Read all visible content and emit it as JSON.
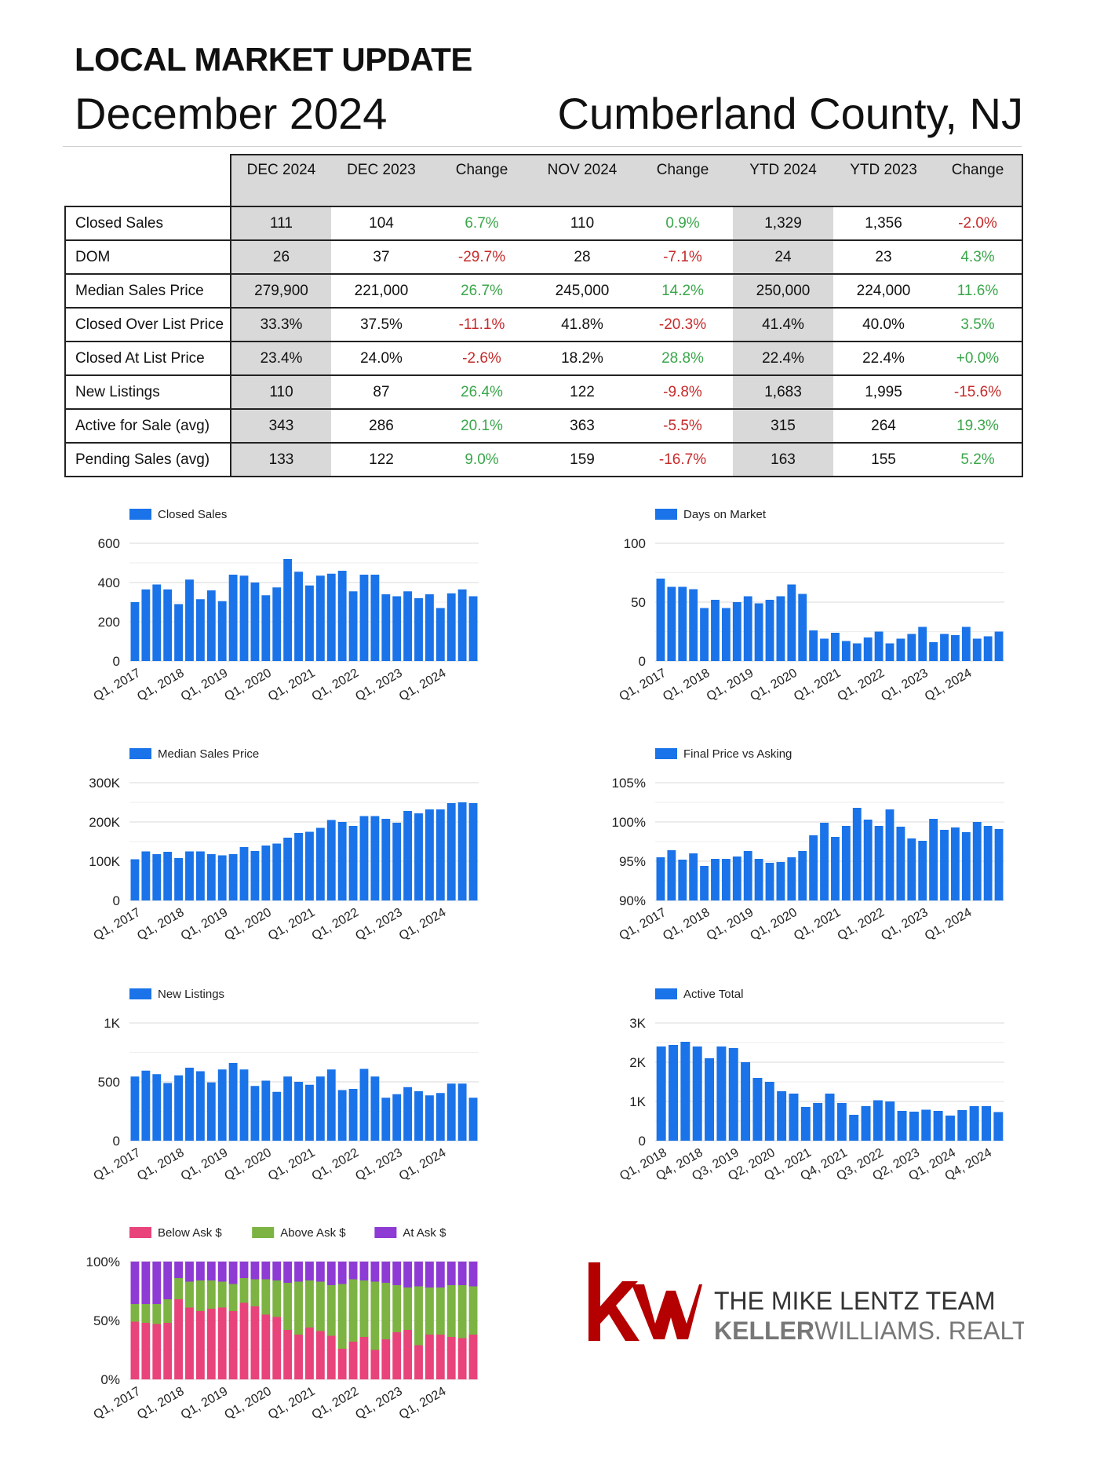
{
  "header": {
    "title": "LOCAL MARKET UPDATE",
    "date": "December 2024",
    "county": "Cumberland County, NJ"
  },
  "table": {
    "columns": [
      "DEC 2024",
      "DEC 2023",
      "Change",
      "NOV 2024",
      "Change",
      "YTD 2024",
      "YTD 2023",
      "Change"
    ],
    "rows": [
      {
        "label": "Closed Sales",
        "cells": [
          "111",
          "104",
          "6.7%",
          "110",
          "0.9%",
          "1,329",
          "1,356",
          "-2.0%"
        ]
      },
      {
        "label": "DOM",
        "cells": [
          "26",
          "37",
          "-29.7%",
          "28",
          "-7.1%",
          "24",
          "23",
          "4.3%"
        ]
      },
      {
        "label": "Median Sales Price",
        "cells": [
          "279,900",
          "221,000",
          "26.7%",
          "245,000",
          "14.2%",
          "250,000",
          "224,000",
          "11.6%"
        ]
      },
      {
        "label": "Closed Over List Price",
        "cells": [
          "33.3%",
          "37.5%",
          "-11.1%",
          "41.8%",
          "-20.3%",
          "41.4%",
          "40.0%",
          "3.5%"
        ]
      },
      {
        "label": "Closed At List Price",
        "cells": [
          "23.4%",
          "24.0%",
          "-2.6%",
          "18.2%",
          "28.8%",
          "22.4%",
          "22.4%",
          "+0.0%"
        ]
      },
      {
        "label": "New Listings",
        "cells": [
          "110",
          "87",
          "26.4%",
          "122",
          "-9.8%",
          "1,683",
          "1,995",
          "-15.6%"
        ]
      },
      {
        "label": "Active for Sale (avg)",
        "cells": [
          "343",
          "286",
          "20.1%",
          "363",
          "-5.5%",
          "315",
          "264",
          "19.3%"
        ]
      },
      {
        "label": "Pending Sales (avg)",
        "cells": [
          "133",
          "122",
          "9.0%",
          "159",
          "-16.7%",
          "163",
          "155",
          "5.2%"
        ]
      }
    ],
    "change_colors": {
      "positive": "#3aa64a",
      "negative": "#c62a2a"
    }
  },
  "colors": {
    "bar": "#1a73e8",
    "below_ask": "#e8437a",
    "above_ask": "#7cb342",
    "at_ask": "#8e3ad4",
    "grid": "#d9d9d9"
  },
  "chart_data": [
    {
      "id": "closed-sales",
      "type": "bar",
      "legend": [
        "Closed Sales"
      ],
      "x_tick_labels": [
        "Q1, 2017",
        "Q1, 2018",
        "Q1, 2019",
        "Q1, 2020",
        "Q1, 2021",
        "Q1, 2022",
        "Q1, 2023",
        "Q1, 2024"
      ],
      "y_ticks": [
        "0",
        "200",
        "400",
        "600"
      ],
      "ylim": [
        0,
        600
      ],
      "values": [
        300,
        365,
        390,
        365,
        290,
        415,
        315,
        360,
        305,
        440,
        435,
        400,
        335,
        375,
        520,
        455,
        385,
        435,
        445,
        460,
        355,
        440,
        440,
        340,
        330,
        355,
        320,
        340,
        270,
        345,
        365,
        330
      ]
    },
    {
      "id": "days-on-market",
      "type": "bar",
      "legend": [
        "Days on Market"
      ],
      "x_tick_labels": [
        "Q1, 2017",
        "Q1, 2018",
        "Q1, 2019",
        "Q1, 2020",
        "Q1, 2021",
        "Q1, 2022",
        "Q1, 2023",
        "Q1, 2024"
      ],
      "y_ticks": [
        "0",
        "50",
        "100"
      ],
      "ylim": [
        0,
        100
      ],
      "values": [
        70,
        63,
        63,
        61,
        45,
        52,
        45,
        50,
        55,
        49,
        52,
        55,
        65,
        57,
        26,
        19,
        24,
        17,
        15,
        20,
        25,
        15,
        19,
        23,
        29,
        16,
        23,
        22,
        29,
        19,
        21,
        25
      ]
    },
    {
      "id": "median-sales-price",
      "type": "bar",
      "legend": [
        "Median Sales Price"
      ],
      "x_tick_labels": [
        "Q1, 2017",
        "Q1, 2018",
        "Q1, 2019",
        "Q1, 2020",
        "Q1, 2021",
        "Q1, 2022",
        "Q1, 2023",
        "Q1, 2024"
      ],
      "y_ticks": [
        "0",
        "100K",
        "200K",
        "300K"
      ],
      "ylim": [
        0,
        300000
      ],
      "values": [
        105000,
        125000,
        118000,
        124000,
        108000,
        125000,
        125000,
        118000,
        115000,
        118000,
        136000,
        126000,
        140000,
        145000,
        160000,
        172000,
        175000,
        185000,
        205000,
        200000,
        190000,
        215000,
        215000,
        208000,
        198000,
        228000,
        222000,
        232000,
        232000,
        248000,
        250000,
        248000
      ]
    },
    {
      "id": "final-price-vs-asking",
      "type": "bar",
      "legend": [
        "Final Price vs Asking"
      ],
      "x_tick_labels": [
        "Q1, 2017",
        "Q1, 2018",
        "Q1, 2019",
        "Q1, 2020",
        "Q1, 2021",
        "Q1, 2022",
        "Q1, 2023",
        "Q1, 2024"
      ],
      "y_ticks": [
        "90%",
        "95%",
        "100%",
        "105%"
      ],
      "ylim": [
        90,
        105
      ],
      "values": [
        95.5,
        96.4,
        95.2,
        96.0,
        94.4,
        95.3,
        95.3,
        95.6,
        96.3,
        95.3,
        94.8,
        94.9,
        95.5,
        96.3,
        98.3,
        99.9,
        98.1,
        99.5,
        101.8,
        100.3,
        99.5,
        101.6,
        99.4,
        97.9,
        97.6,
        100.4,
        99.0,
        99.3,
        98.7,
        100.0,
        99.5,
        99.1
      ]
    },
    {
      "id": "new-listings",
      "type": "bar",
      "legend": [
        "New Listings"
      ],
      "x_tick_labels": [
        "Q1, 2017",
        "Q1, 2018",
        "Q1, 2019",
        "Q1, 2020",
        "Q1, 2021",
        "Q1, 2022",
        "Q1, 2023",
        "Q1, 2024"
      ],
      "y_ticks": [
        "0",
        "500",
        "1K"
      ],
      "ylim": [
        0,
        1000
      ],
      "values": [
        545,
        595,
        565,
        490,
        555,
        620,
        590,
        495,
        605,
        660,
        605,
        465,
        510,
        415,
        545,
        500,
        475,
        545,
        605,
        430,
        440,
        610,
        545,
        365,
        395,
        455,
        420,
        385,
        405,
        485,
        485,
        365
      ]
    },
    {
      "id": "active-total",
      "type": "bar",
      "legend": [
        "Active Total"
      ],
      "x_tick_labels": [
        "Q1, 2018",
        "Q4, 2018",
        "Q3, 2019",
        "Q2, 2020",
        "Q1, 2021",
        "Q4, 2021",
        "Q3, 2022",
        "Q2, 2023",
        "Q1, 2024",
        "Q4, 2024"
      ],
      "y_ticks": [
        "0",
        "1K",
        "2K",
        "3K"
      ],
      "ylim": [
        0,
        3000
      ],
      "values": [
        2400,
        2440,
        2520,
        2400,
        2100,
        2400,
        2360,
        2000,
        1600,
        1500,
        1260,
        1200,
        860,
        960,
        1200,
        960,
        660,
        880,
        1030,
        1000,
        760,
        740,
        790,
        760,
        640,
        780,
        880,
        880,
        730
      ]
    },
    {
      "id": "ask-breakdown",
      "type": "stacked-bar-100",
      "legend": [
        "Below Ask $",
        "Above Ask $",
        "At Ask $"
      ],
      "x_tick_labels": [
        "Q1, 2017",
        "Q1, 2018",
        "Q1, 2019",
        "Q1, 2020",
        "Q1, 2021",
        "Q1, 2022",
        "Q1, 2023",
        "Q1, 2024"
      ],
      "y_ticks": [
        "0%",
        "50%",
        "100%"
      ],
      "ylim": [
        0,
        100
      ],
      "series": [
        {
          "name": "Below Ask $",
          "values": [
            49,
            48,
            47,
            48,
            68,
            61,
            58,
            60,
            61,
            58,
            65,
            62,
            55,
            53,
            42,
            38,
            44,
            41,
            37,
            26,
            32,
            36,
            25,
            34,
            40,
            42,
            29,
            38,
            38,
            36,
            35,
            38
          ]
        },
        {
          "name": "Above Ask $",
          "values": [
            15,
            16,
            17,
            20,
            18,
            22,
            26,
            24,
            22,
            23,
            21,
            23,
            30,
            31,
            40,
            45,
            40,
            42,
            43,
            55,
            53,
            48,
            58,
            48,
            40,
            36,
            50,
            40,
            40,
            44,
            45,
            41
          ]
        },
        {
          "name": "At Ask $",
          "values": [
            36,
            36,
            36,
            32,
            14,
            17,
            16,
            16,
            17,
            19,
            14,
            15,
            15,
            16,
            18,
            17,
            16,
            17,
            20,
            19,
            15,
            16,
            17,
            18,
            20,
            22,
            21,
            22,
            22,
            20,
            20,
            21
          ]
        }
      ]
    }
  ],
  "logo": {
    "team": "THE MIKE LENTZ TEAM",
    "brand_bold": "KELLER",
    "brand_rest": "WILLIAMS",
    "realty": "REALTY",
    "mark": "kw"
  }
}
